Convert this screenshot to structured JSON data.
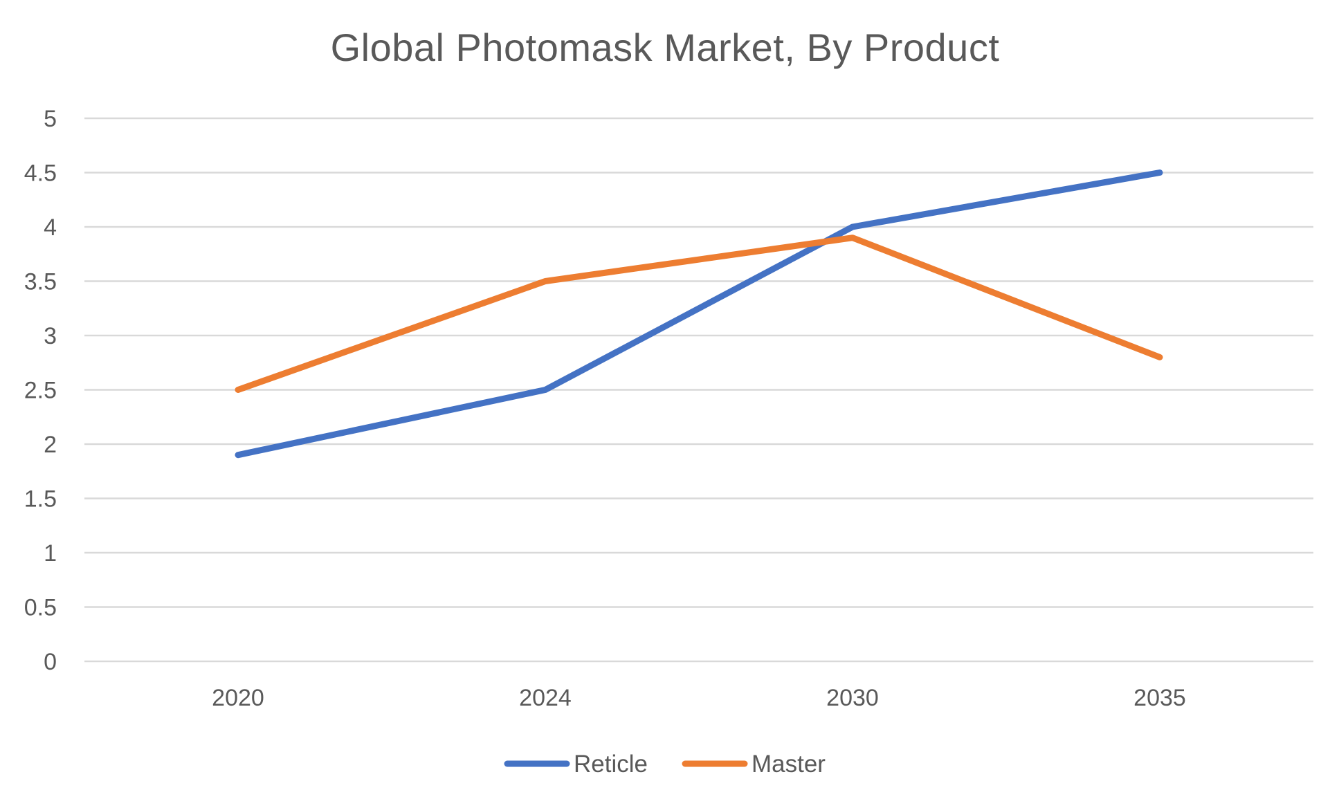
{
  "chart_data": {
    "type": "line",
    "title": "Global Photomask Market, By Product",
    "xlabel": "",
    "ylabel": "",
    "categories": [
      "2020",
      "2024",
      "2030",
      "2035"
    ],
    "yticks": [
      "0",
      "0.5",
      "1",
      "1.5",
      "2",
      "2.5",
      "3",
      "3.5",
      "4",
      "4.5",
      "5"
    ],
    "ylim": [
      0,
      5
    ],
    "grid": true,
    "legend_position": "bottom",
    "series": [
      {
        "name": "Reticle",
        "color": "#4472C4",
        "values": [
          1.9,
          2.5,
          4.0,
          4.5
        ]
      },
      {
        "name": "Master",
        "color": "#ED7D31",
        "values": [
          2.5,
          3.5,
          3.9,
          2.8
        ]
      }
    ]
  }
}
